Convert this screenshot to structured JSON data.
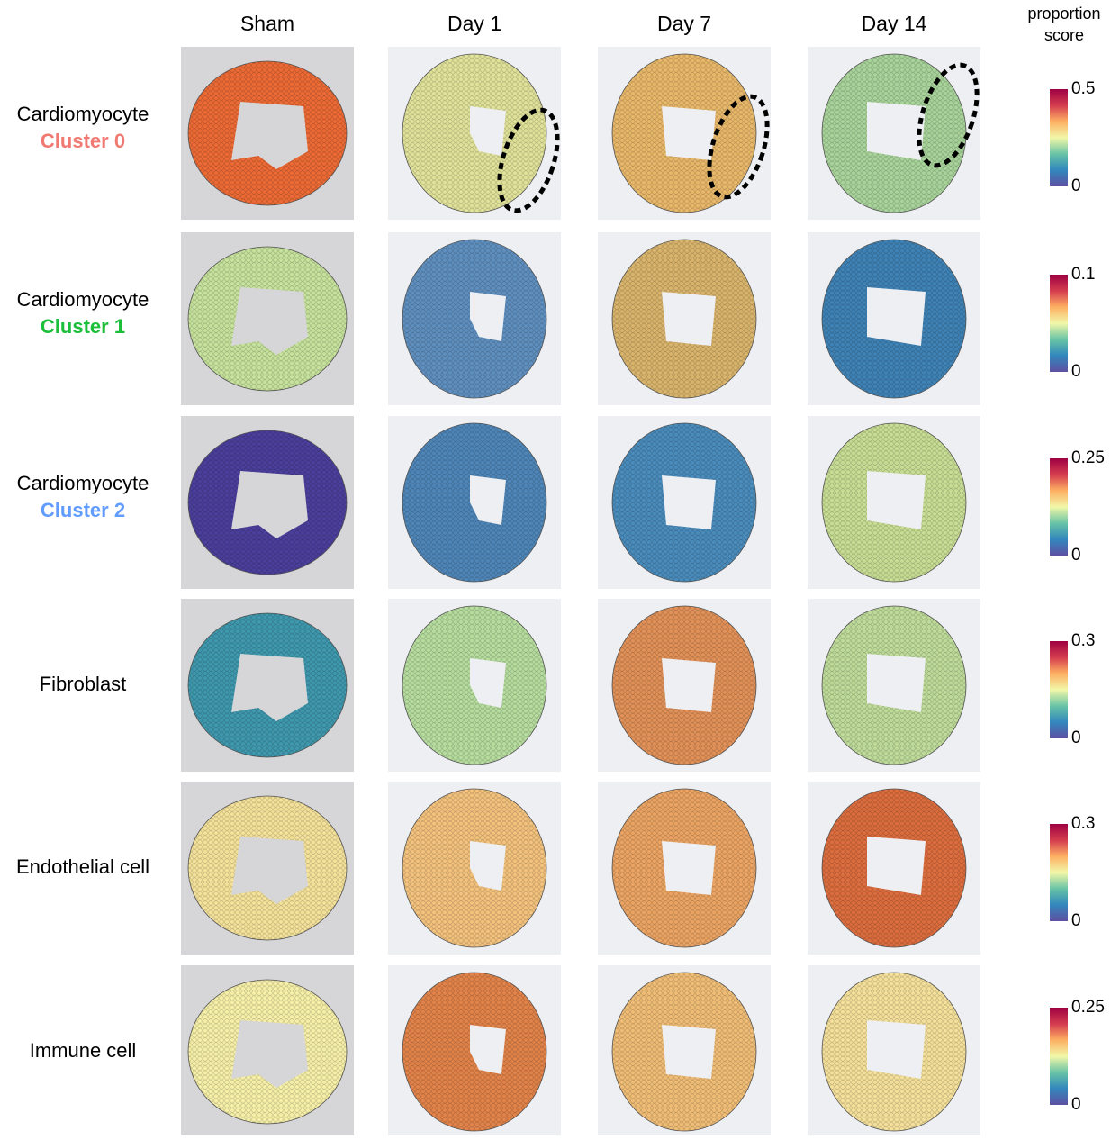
{
  "columns": [
    "Sham",
    "Day 1",
    "Day 7",
    "Day 14"
  ],
  "legend_title": "proportion score",
  "rows": [
    {
      "label": "Cardiomyocyte",
      "sublabel": "Cluster 0",
      "sublabel_color": "#f07a72",
      "scale_max": 0.5,
      "scale_min": 0,
      "tints": [
        "#ec6a35",
        "#e0e29a",
        "#e8b86a",
        "#a8d39a"
      ]
    },
    {
      "label": "Cardiomyocyte",
      "sublabel": "Cluster 1",
      "sublabel_color": "#1cbf3a",
      "scale_max": 0.1,
      "scale_min": 0,
      "tints": [
        "#c6e29c",
        "#5f8fbf",
        "#d9b46c",
        "#3f82b5"
      ]
    },
    {
      "label": "Cardiomyocyte",
      "sublabel": "Cluster 2",
      "sublabel_color": "#619cff",
      "scale_max": 0.25,
      "scale_min": 0,
      "tints": [
        "#4b3f9c",
        "#4f86b8",
        "#4a8cbc",
        "#c8dd94"
      ]
    },
    {
      "label": "Fibroblast",
      "scale_max": 0.3,
      "scale_min": 0,
      "tints": [
        "#3f98ad",
        "#b6dc9e",
        "#e19158",
        "#bedb9a"
      ]
    },
    {
      "label": "Endothelial cell",
      "scale_max": 0.3,
      "scale_min": 0,
      "tints": [
        "#f4e29a",
        "#f3c27d",
        "#eba463",
        "#dc6d3e"
      ]
    },
    {
      "label": "Immune cell",
      "scale_max": 0.25,
      "scale_min": 0,
      "tints": [
        "#f6efa8",
        "#e2834a",
        "#f0bd76",
        "#f4e09a"
      ]
    }
  ]
}
